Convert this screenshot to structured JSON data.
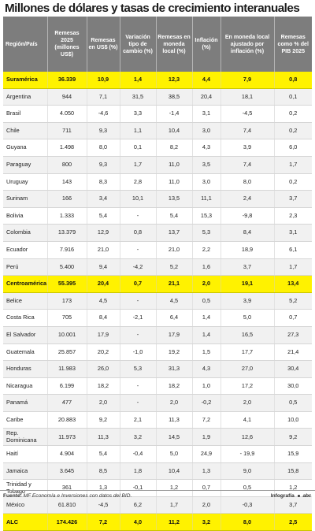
{
  "title": "Millones de dólares y tasas de crecimiento interanuales",
  "headers": [
    "Región/País",
    "Remesas 2025 (millones US$)",
    "Remesas en US$ (%)",
    "Variación tipo de cambio (%)",
    "Remesas en moneda local (%)",
    "Inflación (%)",
    "En moneda local ajustado por inflación (%)",
    "Remesas como % del PIB 2025"
  ],
  "rows": [
    {
      "cells": [
        "Suramérica",
        "36.339",
        "10,9",
        "1,4",
        "12,3",
        "4,4",
        "7,9",
        "0,8"
      ],
      "kind": "total"
    },
    {
      "cells": [
        "Argentina",
        "944",
        "7,1",
        "31,5",
        "38,5",
        "20,4",
        "18,1",
        "0,1"
      ],
      "kind": "alt"
    },
    {
      "cells": [
        "Brasil",
        "4.050",
        "-4,6",
        "3,3",
        "-1,4",
        "3,1",
        "-4,5",
        "0,2"
      ],
      "kind": "plain"
    },
    {
      "cells": [
        "Chile",
        "711",
        "9,3",
        "1,1",
        "10,4",
        "3,0",
        "7,4",
        "0,2"
      ],
      "kind": "alt"
    },
    {
      "cells": [
        "Guyana",
        "1.498",
        "8,0",
        "0,1",
        "8,2",
        "4,3",
        "3,9",
        "6,0"
      ],
      "kind": "plain"
    },
    {
      "cells": [
        "Paraguay",
        "800",
        "9,3",
        "1,7",
        "11,0",
        "3,5",
        "7,4",
        "1,7"
      ],
      "kind": "alt"
    },
    {
      "cells": [
        "Uruguay",
        "143",
        "8,3",
        "2,8",
        "11,0",
        "3,0",
        "8,0",
        "0,2"
      ],
      "kind": "plain"
    },
    {
      "cells": [
        "Surinam",
        "166",
        "3,4",
        "10,1",
        "13,5",
        "11,1",
        "2,4",
        "3,7"
      ],
      "kind": "alt"
    },
    {
      "cells": [
        "Bolivia",
        "1.333",
        "5,4",
        "-",
        "5,4",
        "15,3",
        "-9,8",
        "2,3"
      ],
      "kind": "plain"
    },
    {
      "cells": [
        "Colombia",
        "13.379",
        "12,9",
        "0,8",
        "13,7",
        "5,3",
        "8,4",
        "3,1"
      ],
      "kind": "alt"
    },
    {
      "cells": [
        "Ecuador",
        "7.916",
        "21,0",
        "-",
        "21,0",
        "2,2",
        "18,9",
        "6,1"
      ],
      "kind": "plain"
    },
    {
      "cells": [
        "Perú",
        "5.400",
        "9,4",
        "-4,2",
        "5,2",
        "1,6",
        "3,7",
        "1,7"
      ],
      "kind": "alt"
    },
    {
      "cells": [
        "Centroamérica",
        "55.395",
        "20,4",
        "0,7",
        "21,1",
        "2,0",
        "19,1",
        "13,4"
      ],
      "kind": "total"
    },
    {
      "cells": [
        "Belice",
        "173",
        "4,5",
        "-",
        "4,5",
        "0,5",
        "3,9",
        "5,2"
      ],
      "kind": "alt"
    },
    {
      "cells": [
        "Costa Rica",
        "705",
        "8,4",
        "-2,1",
        "6,4",
        "1,4",
        "5,0",
        "0,7"
      ],
      "kind": "plain"
    },
    {
      "cells": [
        "El Salvador",
        "10.001",
        "17,9",
        "-",
        "17,9",
        "1,4",
        "16,5",
        "27,3"
      ],
      "kind": "alt"
    },
    {
      "cells": [
        "Guatemala",
        "25.857",
        "20,2",
        "-1,0",
        "19,2",
        "1,5",
        "17,7",
        "21,4"
      ],
      "kind": "plain"
    },
    {
      "cells": [
        "Honduras",
        "11.983",
        "26,0",
        "5,3",
        "31,3",
        "4,3",
        "27,0",
        "30,4"
      ],
      "kind": "alt"
    },
    {
      "cells": [
        "Nicaragua",
        "6.199",
        "18,2",
        "-",
        "18,2",
        "1,0",
        "17,2",
        "30,0"
      ],
      "kind": "plain"
    },
    {
      "cells": [
        "Panamá",
        "477",
        "2,0",
        "-",
        "2,0",
        "-0,2",
        "2,0",
        "0,5"
      ],
      "kind": "alt"
    },
    {
      "cells": [
        "Caribe",
        "20.883",
        "9,2",
        "2,1",
        "11,3",
        "7,2",
        "4,1",
        "10,0"
      ],
      "kind": "plain"
    },
    {
      "cells": [
        "Rep. Dominicana",
        "11.973",
        "11,3",
        "3,2",
        "14,5",
        "1,9",
        "12,6",
        "9,2"
      ],
      "kind": "alt"
    },
    {
      "cells": [
        "Haití",
        "4.904",
        "5,4",
        "-0,4",
        "5,0",
        "24,9",
        "- 19,9",
        "15,9"
      ],
      "kind": "plain"
    },
    {
      "cells": [
        "Jamaica",
        "3.645",
        "8,5",
        "1,8",
        "10,4",
        "1,3",
        "9,0",
        "15,8"
      ],
      "kind": "alt"
    },
    {
      "cells": [
        "Trinidad y Tobago",
        "361",
        "1,3",
        "-0,1",
        "1,2",
        "0,7",
        "0,5",
        "1,2"
      ],
      "kind": "plain"
    },
    {
      "cells": [
        "México",
        "61.810",
        "-4,5",
        "6,2",
        "1,7",
        "2,0",
        "-0,3",
        "3,7"
      ],
      "kind": "alt"
    },
    {
      "cells": [
        "ALC",
        "174.426",
        "7,2",
        "4,0",
        "11,2",
        "3,2",
        "8,0",
        "2,5"
      ],
      "kind": "total"
    }
  ],
  "footer": {
    "source_label": "Fuente:",
    "source_text": "MF Economía e Inversiones con datos del BID.",
    "credit_label": "Infografía",
    "logo_text": "abc"
  },
  "colors": {
    "title": "#1a1a1a",
    "header_bg": "#7d7d7d",
    "header_text": "#ffffff",
    "total_row_bg": "#fff200",
    "alt_row_bg": "#f1f1f1",
    "plain_row_bg": "#ffffff"
  }
}
